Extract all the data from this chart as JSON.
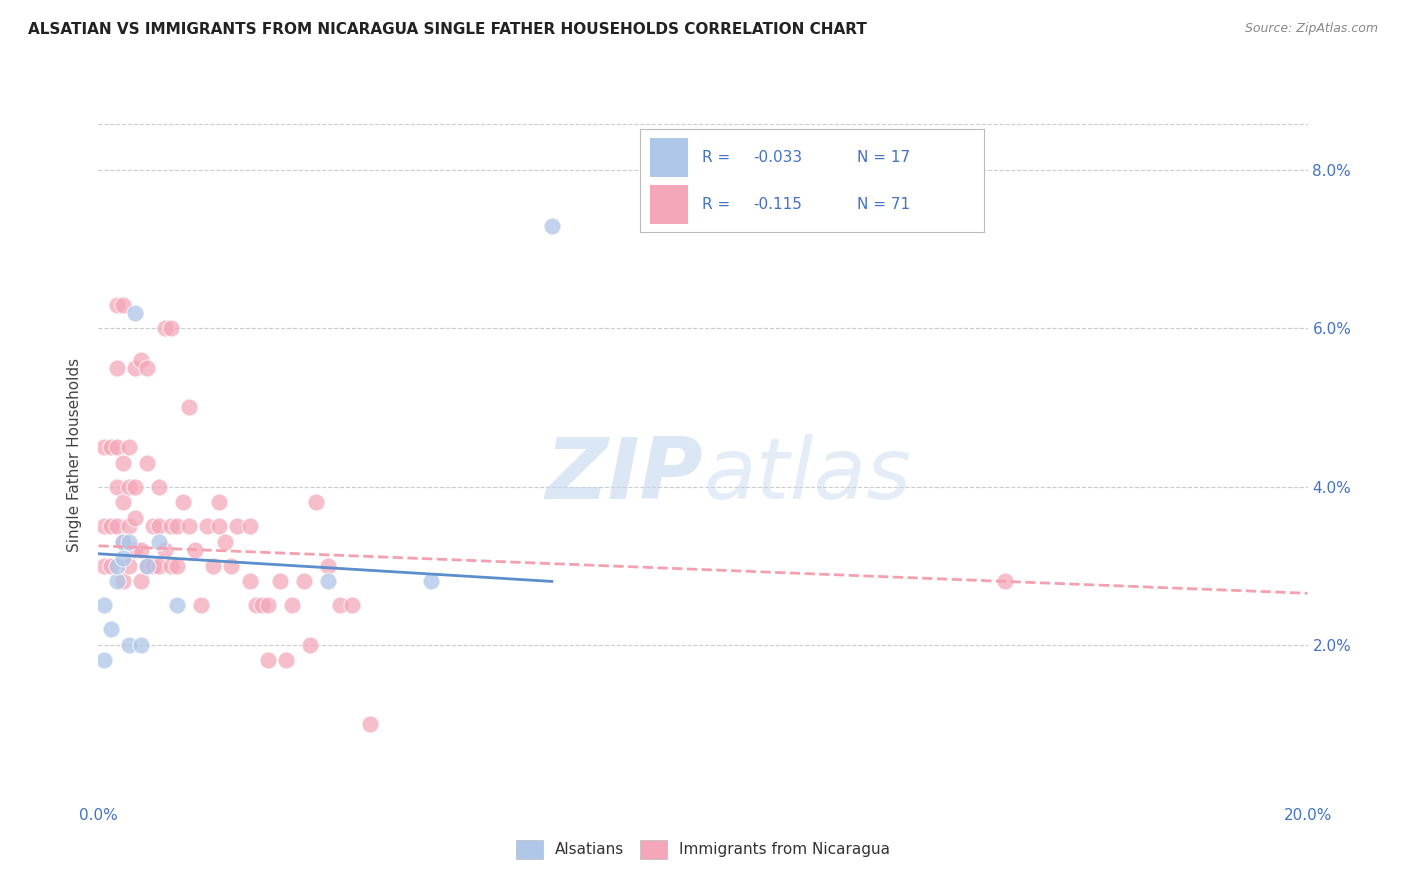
{
  "title": "ALSATIAN VS IMMIGRANTS FROM NICARAGUA SINGLE FATHER HOUSEHOLDS CORRELATION CHART",
  "source": "Source: ZipAtlas.com",
  "ylabel": "Single Father Households",
  "x_min": 0.0,
  "x_max": 0.2,
  "y_min": 0.0,
  "y_max": 0.088,
  "x_ticks": [
    0.0,
    0.05,
    0.1,
    0.15,
    0.2
  ],
  "x_tick_labels": [
    "0.0%",
    "",
    "",
    "",
    "20.0%"
  ],
  "y_ticks": [
    0.02,
    0.04,
    0.06,
    0.08
  ],
  "y_tick_labels": [
    "2.0%",
    "4.0%",
    "6.0%",
    "8.0%"
  ],
  "legend_label_blue": "Alsatians",
  "legend_label_pink": "Immigrants from Nicaragua",
  "r_blue": "-0.033",
  "n_blue": "17",
  "r_pink": "-0.115",
  "n_pink": "71",
  "blue_color": "#aec6e8",
  "pink_color": "#f4a7b9",
  "blue_line_color": "#5b8ecb",
  "pink_line_color": "#f4a0b0",
  "text_blue": "#4472c4",
  "watermark_color": "#d5e8f5",
  "blue_points_x": [
    0.001,
    0.002,
    0.003,
    0.003,
    0.004,
    0.004,
    0.005,
    0.005,
    0.006,
    0.007,
    0.008,
    0.01,
    0.013,
    0.038,
    0.055,
    0.075,
    0.001
  ],
  "blue_points_y": [
    0.025,
    0.022,
    0.028,
    0.03,
    0.033,
    0.031,
    0.033,
    0.02,
    0.062,
    0.02,
    0.03,
    0.033,
    0.025,
    0.028,
    0.028,
    0.073,
    0.018
  ],
  "pink_points_x": [
    0.001,
    0.001,
    0.001,
    0.002,
    0.002,
    0.002,
    0.003,
    0.003,
    0.003,
    0.003,
    0.003,
    0.004,
    0.004,
    0.004,
    0.004,
    0.004,
    0.005,
    0.005,
    0.005,
    0.005,
    0.006,
    0.006,
    0.006,
    0.006,
    0.007,
    0.007,
    0.007,
    0.008,
    0.008,
    0.008,
    0.009,
    0.009,
    0.01,
    0.01,
    0.01,
    0.011,
    0.011,
    0.012,
    0.012,
    0.012,
    0.013,
    0.013,
    0.014,
    0.015,
    0.015,
    0.016,
    0.017,
    0.018,
    0.019,
    0.02,
    0.02,
    0.021,
    0.022,
    0.023,
    0.025,
    0.025,
    0.026,
    0.027,
    0.028,
    0.028,
    0.03,
    0.031,
    0.032,
    0.034,
    0.035,
    0.036,
    0.038,
    0.04,
    0.042,
    0.045,
    0.15
  ],
  "pink_points_y": [
    0.045,
    0.035,
    0.03,
    0.03,
    0.035,
    0.045,
    0.035,
    0.04,
    0.045,
    0.055,
    0.063,
    0.028,
    0.033,
    0.038,
    0.043,
    0.063,
    0.03,
    0.035,
    0.04,
    0.045,
    0.032,
    0.036,
    0.04,
    0.055,
    0.028,
    0.032,
    0.056,
    0.03,
    0.043,
    0.055,
    0.03,
    0.035,
    0.03,
    0.035,
    0.04,
    0.032,
    0.06,
    0.03,
    0.035,
    0.06,
    0.03,
    0.035,
    0.038,
    0.035,
    0.05,
    0.032,
    0.025,
    0.035,
    0.03,
    0.038,
    0.035,
    0.033,
    0.03,
    0.035,
    0.028,
    0.035,
    0.025,
    0.025,
    0.018,
    0.025,
    0.028,
    0.018,
    0.025,
    0.028,
    0.02,
    0.038,
    0.03,
    0.025,
    0.025,
    0.01,
    0.028
  ],
  "blue_trend_x": [
    0.0,
    0.075
  ],
  "blue_trend_y_start": 0.0315,
  "blue_trend_y_end": 0.028,
  "pink_trend_x": [
    0.0,
    0.2
  ],
  "pink_trend_y_start": 0.0325,
  "pink_trend_y_end": 0.0265
}
